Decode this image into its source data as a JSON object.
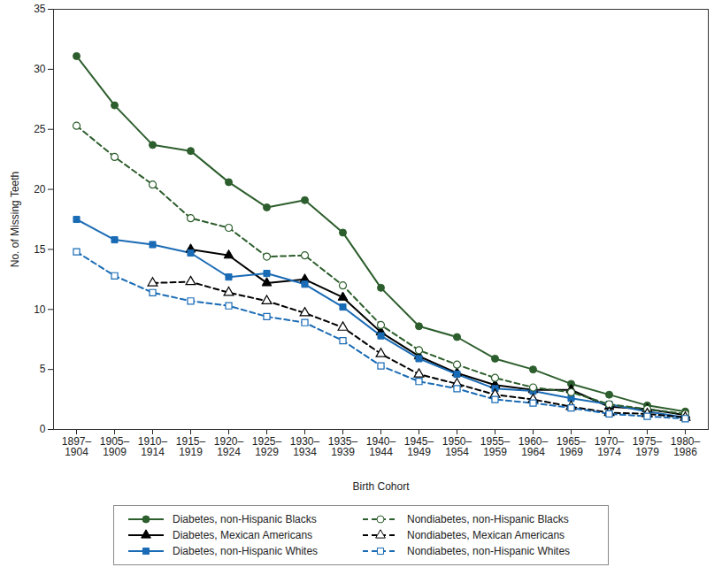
{
  "chart_data": {
    "type": "line",
    "x_label": "Birth Cohort",
    "y_label": "No. of Missing Teeth",
    "categories": [
      "1897–1904",
      "1905–1909",
      "1910–1914",
      "1915–1919",
      "1920–1924",
      "1925–1929",
      "1930–1934",
      "1935–1939",
      "1940–1944",
      "1945–1949",
      "1950–1954",
      "1955–1959",
      "1960–1964",
      "1965–1969",
      "1970–1974",
      "1975–1979",
      "1980–1986"
    ],
    "series": [
      {
        "name": "Diabetes, non-Hispanic Blacks",
        "color": "#2d5e2d",
        "marker": "circle",
        "line_style": "solid",
        "values": [
          31.1,
          27.0,
          23.7,
          23.2,
          20.6,
          18.5,
          19.1,
          16.4,
          11.8,
          8.6,
          7.7,
          5.9,
          5.0,
          3.8,
          2.9,
          2.0,
          1.5
        ]
      },
      {
        "name": "Diabetes, Mexican Americans",
        "color": "#000000",
        "marker": "triangle",
        "line_style": "solid",
        "values": [
          null,
          null,
          null,
          15.0,
          14.5,
          12.2,
          12.5,
          11.0,
          8.1,
          6.1,
          4.7,
          3.7,
          3.3,
          3.3,
          1.9,
          1.7,
          1.2
        ]
      },
      {
        "name": "Diabetes, non-Hispanic Whites",
        "color": "#1a6bb5",
        "marker": "square",
        "line_style": "solid",
        "values": [
          17.5,
          15.8,
          15.4,
          14.7,
          12.7,
          13.0,
          12.1,
          10.2,
          7.8,
          5.9,
          4.6,
          3.4,
          3.2,
          2.6,
          2.1,
          1.5,
          1.0
        ]
      },
      {
        "name": "Nondiabetes, non-Hispanic Blacks",
        "color": "#2d5e2d",
        "marker": "circle-open",
        "line_style": "dashed",
        "values": [
          25.3,
          22.7,
          20.4,
          17.6,
          16.8,
          14.4,
          14.5,
          12.0,
          8.7,
          6.6,
          5.4,
          4.3,
          3.5,
          3.1,
          2.1,
          1.7,
          1.3
        ]
      },
      {
        "name": "Nondiabetes, Mexican Americans",
        "color": "#000000",
        "marker": "triangle-open",
        "line_style": "dashed",
        "values": [
          null,
          null,
          12.2,
          12.3,
          11.4,
          10.7,
          9.7,
          8.5,
          6.3,
          4.6,
          3.8,
          2.9,
          2.5,
          1.9,
          1.4,
          1.3,
          1.0
        ]
      },
      {
        "name": "Nondiabetes, non-Hispanic Whites",
        "color": "#1a6bb5",
        "marker": "square-open",
        "line_style": "dashed",
        "values": [
          14.8,
          12.8,
          11.4,
          10.7,
          10.3,
          9.4,
          8.9,
          7.4,
          5.3,
          4.0,
          3.4,
          2.5,
          2.2,
          1.8,
          1.3,
          1.1,
          0.9
        ]
      }
    ],
    "ylim": [
      0,
      35
    ],
    "yticks": [
      0,
      5,
      10,
      15,
      20,
      25,
      30,
      35
    ],
    "grid": false,
    "legend": "bottom"
  }
}
